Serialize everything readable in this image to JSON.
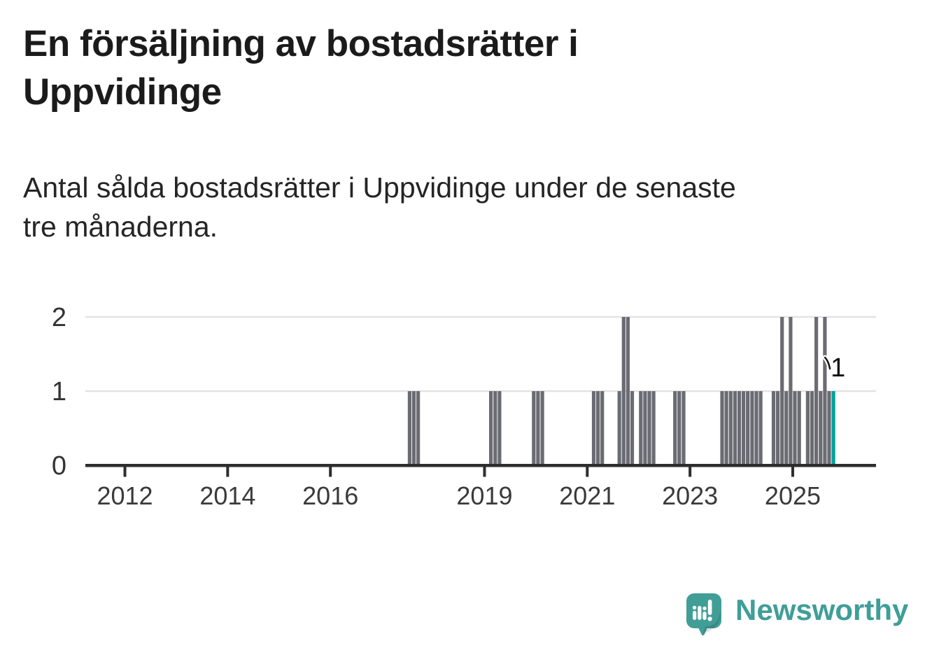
{
  "header": {
    "title_lines": [
      "En försäljning av bostadsrätter i",
      "Uppvidinge"
    ],
    "subtitle_lines": [
      "Antal sålda bostadsrätter i Uppvidinge under de senaste",
      "tre månaderna."
    ]
  },
  "chart_data": {
    "type": "bar",
    "title": "En försäljning av bostadsrätter i Uppvidinge",
    "subtitle": "Antal sålda bostadsrätter i Uppvidinge under de senaste tre månaderna.",
    "xlabel": "",
    "ylabel": "",
    "ylim": [
      0,
      2
    ],
    "yticks": [
      0,
      1,
      2
    ],
    "xtick_years": [
      2012,
      2014,
      2016,
      2019,
      2021,
      2023,
      2025
    ],
    "grid": "horizontal",
    "bar_color": "#6b6b73",
    "highlight_color": "#00a29a",
    "gridline_color": "#e3e3e3",
    "axis_color": "#2d2d2d",
    "tick_label_color": "#3a3a3a",
    "annotation_color": "#111111",
    "bars": [
      {
        "month": "2017-07",
        "value": 1
      },
      {
        "month": "2017-08",
        "value": 1
      },
      {
        "month": "2017-09",
        "value": 1
      },
      {
        "month": "2019-02",
        "value": 1
      },
      {
        "month": "2019-03",
        "value": 1
      },
      {
        "month": "2019-04",
        "value": 1
      },
      {
        "month": "2019-12",
        "value": 1
      },
      {
        "month": "2020-01",
        "value": 1
      },
      {
        "month": "2020-02",
        "value": 1
      },
      {
        "month": "2021-02",
        "value": 1
      },
      {
        "month": "2021-03",
        "value": 1
      },
      {
        "month": "2021-04",
        "value": 1
      },
      {
        "month": "2021-08",
        "value": 1
      },
      {
        "month": "2021-09",
        "value": 2
      },
      {
        "month": "2021-10",
        "value": 2
      },
      {
        "month": "2021-11",
        "value": 1
      },
      {
        "month": "2022-01",
        "value": 1
      },
      {
        "month": "2022-02",
        "value": 1
      },
      {
        "month": "2022-03",
        "value": 1
      },
      {
        "month": "2022-04",
        "value": 1
      },
      {
        "month": "2022-09",
        "value": 1
      },
      {
        "month": "2022-10",
        "value": 1
      },
      {
        "month": "2022-11",
        "value": 1
      },
      {
        "month": "2023-08",
        "value": 1
      },
      {
        "month": "2023-09",
        "value": 1
      },
      {
        "month": "2023-10",
        "value": 1
      },
      {
        "month": "2023-11",
        "value": 1
      },
      {
        "month": "2023-12",
        "value": 1
      },
      {
        "month": "2024-01",
        "value": 1
      },
      {
        "month": "2024-02",
        "value": 1
      },
      {
        "month": "2024-03",
        "value": 1
      },
      {
        "month": "2024-04",
        "value": 1
      },
      {
        "month": "2024-05",
        "value": 1
      },
      {
        "month": "2024-08",
        "value": 1
      },
      {
        "month": "2024-09",
        "value": 1
      },
      {
        "month": "2024-10",
        "value": 2
      },
      {
        "month": "2024-11",
        "value": 1
      },
      {
        "month": "2024-12",
        "value": 2
      },
      {
        "month": "2025-01",
        "value": 1
      },
      {
        "month": "2025-02",
        "value": 1
      },
      {
        "month": "2025-04",
        "value": 1
      },
      {
        "month": "2025-05",
        "value": 1
      },
      {
        "month": "2025-06",
        "value": 2
      },
      {
        "month": "2025-07",
        "value": 1
      },
      {
        "month": "2025-08",
        "value": 2
      },
      {
        "month": "2025-09",
        "value": 1
      },
      {
        "month": "2025-10",
        "value": 1,
        "highlight": true
      }
    ],
    "annotation": {
      "label": "1",
      "month": "2025-10"
    }
  },
  "footer": {
    "brand": "Newsworthy",
    "brand_color": "#3f9e98"
  }
}
